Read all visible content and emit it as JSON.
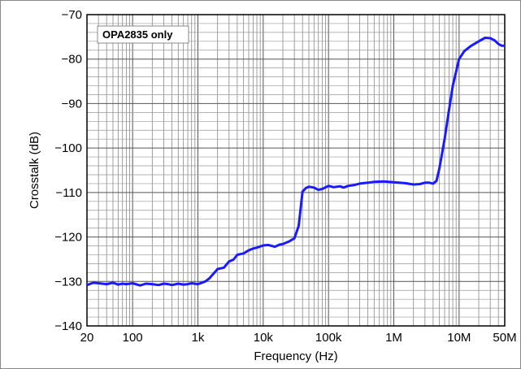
{
  "chart_data": {
    "type": "line",
    "xlabel": "Frequency (Hz)",
    "ylabel": "Crosstalk (dB)",
    "x_scale": "log",
    "xlim": [
      20,
      50000000
    ],
    "ylim": [
      -140,
      -70
    ],
    "x_ticks": [
      20,
      100,
      1000,
      10000,
      100000,
      1000000,
      10000000,
      50000000
    ],
    "x_tick_labels": [
      "20",
      "100",
      "1k",
      "10k",
      "100k",
      "1M",
      "10M",
      "50M"
    ],
    "y_ticks": [
      -70,
      -80,
      -90,
      -100,
      -110,
      -120,
      -130,
      -140
    ],
    "y_tick_labels": [
      "−70",
      "−80",
      "−90",
      "−100",
      "−110",
      "−120",
      "−130",
      "−140"
    ],
    "grid": true,
    "annotation": "OPA2835 only",
    "series_color": "#1a1aff",
    "series": [
      {
        "x": [
          20,
          25,
          30,
          40,
          50,
          60,
          70,
          80,
          100,
          130,
          160,
          200,
          250,
          300,
          350,
          400,
          500,
          600,
          700,
          800,
          1000,
          1300,
          1500,
          2000,
          2500,
          3000,
          3500,
          4000,
          5000,
          6000,
          7000,
          8000,
          10000,
          12000,
          15000,
          18000,
          20000,
          25000,
          30000,
          35000,
          40000,
          45000,
          50000,
          60000,
          70000,
          80000,
          100000,
          120000,
          150000,
          170000,
          200000,
          250000,
          300000,
          400000,
          500000,
          700000,
          1000000,
          1500000,
          2000000,
          2500000,
          3000000,
          3500000,
          4000000,
          4500000,
          5000000,
          6000000,
          7000000,
          8000000,
          10000000,
          12000000,
          15000000,
          20000000,
          25000000,
          30000000,
          35000000,
          40000000,
          45000000,
          50000000
        ],
        "y": [
          -130.8,
          -130.3,
          -130.4,
          -130.6,
          -130.3,
          -130.7,
          -130.5,
          -130.6,
          -130.4,
          -130.9,
          -130.5,
          -130.6,
          -130.8,
          -130.5,
          -130.6,
          -130.8,
          -130.5,
          -130.7,
          -130.6,
          -130.4,
          -130.6,
          -130.0,
          -129.3,
          -127.2,
          -126.9,
          -125.5,
          -125.1,
          -124.0,
          -123.7,
          -123.0,
          -122.6,
          -122.4,
          -121.9,
          -121.8,
          -122.2,
          -121.7,
          -121.6,
          -121.0,
          -120.3,
          -117.5,
          -109.8,
          -109.0,
          -108.7,
          -108.9,
          -109.4,
          -109.2,
          -108.5,
          -108.8,
          -108.6,
          -108.9,
          -108.5,
          -108.3,
          -108.0,
          -107.8,
          -107.6,
          -107.5,
          -107.7,
          -107.9,
          -108.2,
          -108.1,
          -107.8,
          -107.8,
          -108.0,
          -107.4,
          -104.5,
          -98.0,
          -91.5,
          -86.0,
          -80.0,
          -78.2,
          -77.1,
          -76.0,
          -75.2,
          -75.3,
          -75.8,
          -76.6,
          -77.0,
          -77.0
        ]
      }
    ]
  }
}
